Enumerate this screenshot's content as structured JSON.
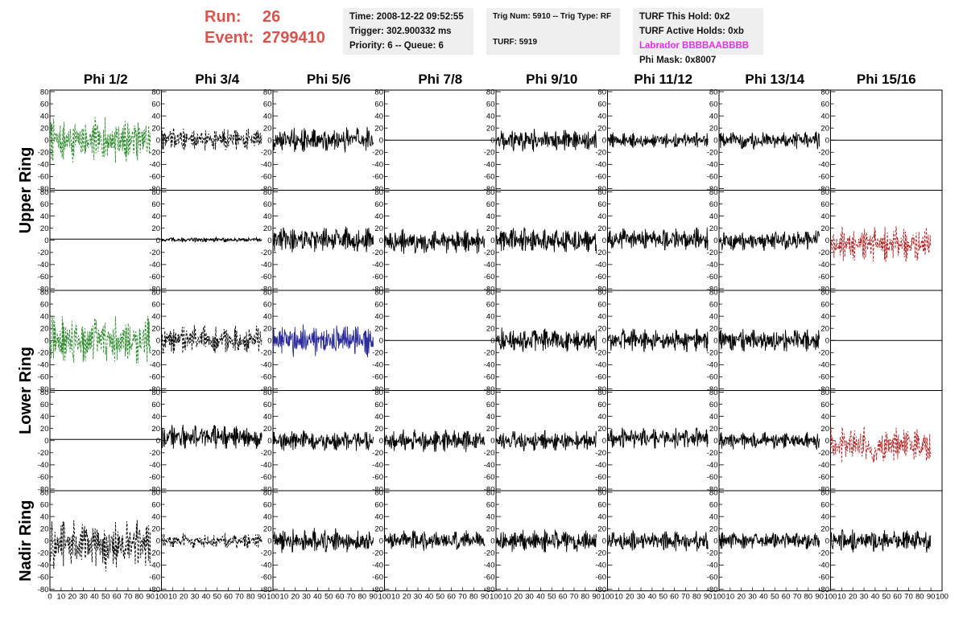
{
  "header": {
    "run_label": "Run:",
    "run_value": "26",
    "event_label": "Event:",
    "event_value": "2799410",
    "time": "Time: 2008-12-22 09:52:55",
    "trigger": "Trigger: 302.900332 ms",
    "priority": "Priority: 6 -- Queue: 6",
    "trig_num": "Trig Num: 5910 -- Trig Type: RF",
    "turf": "TURF: 5919",
    "turf_hold": "TURF This Hold: 0x2",
    "turf_active": "TURF Active Holds: 0xb",
    "labrador": "Labrador BBBBAABBBB",
    "phi_mask": "Phi Mask: 0x8007"
  },
  "colors": {
    "header_red": "#d9534f",
    "labrador_magenta": "#e82ee8",
    "trace_black": "#000000",
    "trace_green": "#2e8b2e",
    "trace_blue": "#2a2a9a",
    "trace_red": "#b22222"
  },
  "chart_data": {
    "type": "line",
    "columns": [
      "Phi 1/2",
      "Phi 3/4",
      "Phi 5/6",
      "Phi 7/8",
      "Phi 9/10",
      "Phi 11/12",
      "Phi 13/14",
      "Phi 15/16"
    ],
    "ring_labels": [
      {
        "label": "Upper Ring",
        "rows": [
          0,
          1
        ]
      },
      {
        "label": "Lower Ring",
        "rows": [
          2,
          3
        ]
      },
      {
        "label": "Nadir Ring",
        "rows": [
          4,
          4
        ]
      }
    ],
    "xlim": [
      0,
      100
    ],
    "ylim": [
      -80,
      80
    ],
    "y_ticks": [
      -80,
      -60,
      -40,
      -20,
      0,
      20,
      40,
      60,
      80
    ],
    "x_ticks": [
      0,
      10,
      20,
      30,
      40,
      50,
      60,
      70,
      80,
      90,
      100
    ],
    "x_trace_end": 90,
    "panels": [
      [
        {
          "style": "dashed",
          "color": "green",
          "amplitude": 35,
          "offset": 0
        },
        {
          "style": "dashed",
          "color": "black",
          "amplitude": 18,
          "offset": 2
        },
        {
          "style": "solid",
          "color": "black",
          "amplitude": 20,
          "offset": 0
        },
        {
          "style": "flat",
          "color": "black",
          "amplitude": 0,
          "offset": 0
        },
        {
          "style": "solid",
          "color": "black",
          "amplitude": 18,
          "offset": 0
        },
        {
          "style": "solid",
          "color": "black",
          "amplitude": 12,
          "offset": 0
        },
        {
          "style": "solid",
          "color": "black",
          "amplitude": 14,
          "offset": 0
        },
        {
          "style": "flat",
          "color": "black",
          "amplitude": 0,
          "offset": 0
        }
      ],
      [
        {
          "style": "flat",
          "color": "black",
          "amplitude": 0,
          "offset": 2
        },
        {
          "style": "solid",
          "color": "black",
          "amplitude": 4,
          "offset": 1
        },
        {
          "style": "solid",
          "color": "black",
          "amplitude": 22,
          "offset": 0
        },
        {
          "style": "solid",
          "color": "black",
          "amplitude": 20,
          "offset": -2
        },
        {
          "style": "solid",
          "color": "black",
          "amplitude": 20,
          "offset": 0
        },
        {
          "style": "solid",
          "color": "black",
          "amplitude": 18,
          "offset": 2
        },
        {
          "style": "solid",
          "color": "black",
          "amplitude": 16,
          "offset": 0
        },
        {
          "style": "dashed",
          "color": "red",
          "amplitude": 28,
          "offset": -6
        }
      ],
      [
        {
          "style": "dashed",
          "color": "green",
          "amplitude": 38,
          "offset": 0
        },
        {
          "style": "dashed",
          "color": "black",
          "amplitude": 22,
          "offset": 2
        },
        {
          "style": "solid",
          "color": "blue",
          "amplitude": 26,
          "offset": 0
        },
        {
          "style": "flat",
          "color": "black",
          "amplitude": 0,
          "offset": 0
        },
        {
          "style": "solid",
          "color": "black",
          "amplitude": 20,
          "offset": 0
        },
        {
          "style": "solid",
          "color": "black",
          "amplitude": 18,
          "offset": 0
        },
        {
          "style": "solid",
          "color": "black",
          "amplitude": 18,
          "offset": 0
        },
        {
          "style": "flat",
          "color": "black",
          "amplitude": 0,
          "offset": 0
        }
      ],
      [
        {
          "style": "flat",
          "color": "black",
          "amplitude": 0,
          "offset": 2
        },
        {
          "style": "solid",
          "color": "black",
          "amplitude": 20,
          "offset": 6
        },
        {
          "style": "solid",
          "color": "black",
          "amplitude": 16,
          "offset": 0
        },
        {
          "style": "solid",
          "color": "black",
          "amplitude": 18,
          "offset": 0
        },
        {
          "style": "solid",
          "color": "black",
          "amplitude": 16,
          "offset": 0
        },
        {
          "style": "solid",
          "color": "black",
          "amplitude": 16,
          "offset": 4
        },
        {
          "style": "solid",
          "color": "black",
          "amplitude": 14,
          "offset": 0
        },
        {
          "style": "dashed",
          "color": "red",
          "amplitude": 30,
          "offset": -8
        }
      ],
      [
        {
          "style": "dashed",
          "color": "black",
          "amplitude": 40,
          "offset": -8
        },
        {
          "style": "dashed",
          "color": "black",
          "amplitude": 12,
          "offset": 0
        },
        {
          "style": "solid",
          "color": "black",
          "amplitude": 20,
          "offset": 0
        },
        {
          "style": "solid",
          "color": "black",
          "amplitude": 16,
          "offset": 0
        },
        {
          "style": "solid",
          "color": "black",
          "amplitude": 18,
          "offset": 0
        },
        {
          "style": "solid",
          "color": "black",
          "amplitude": 16,
          "offset": 0
        },
        {
          "style": "solid",
          "color": "black",
          "amplitude": 14,
          "offset": 0
        },
        {
          "style": "solid",
          "color": "black",
          "amplitude": 18,
          "offset": 0
        }
      ]
    ]
  }
}
